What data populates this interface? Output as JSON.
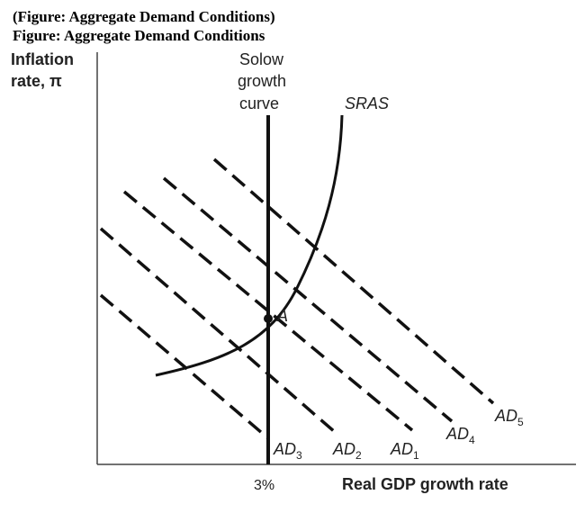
{
  "figure_caption": "(Figure: Aggregate Demand Conditions)",
  "figure_title": "Figure: Aggregate Demand Conditions",
  "chart_data": {
    "type": "line",
    "ylabel_line1": "Inflation",
    "ylabel_line2": "rate, π",
    "xlabel": "Real GDP growth rate",
    "x_tick": "3%",
    "solow_label": [
      "Solow",
      "growth",
      "curve"
    ],
    "sras_label": "SRAS",
    "point_label": "A",
    "ad_curves": [
      {
        "name": "AD",
        "sub": "3"
      },
      {
        "name": "AD",
        "sub": "2"
      },
      {
        "name": "AD",
        "sub": "1"
      },
      {
        "name": "AD",
        "sub": "4"
      },
      {
        "name": "AD",
        "sub": "5"
      }
    ],
    "grid": false
  }
}
